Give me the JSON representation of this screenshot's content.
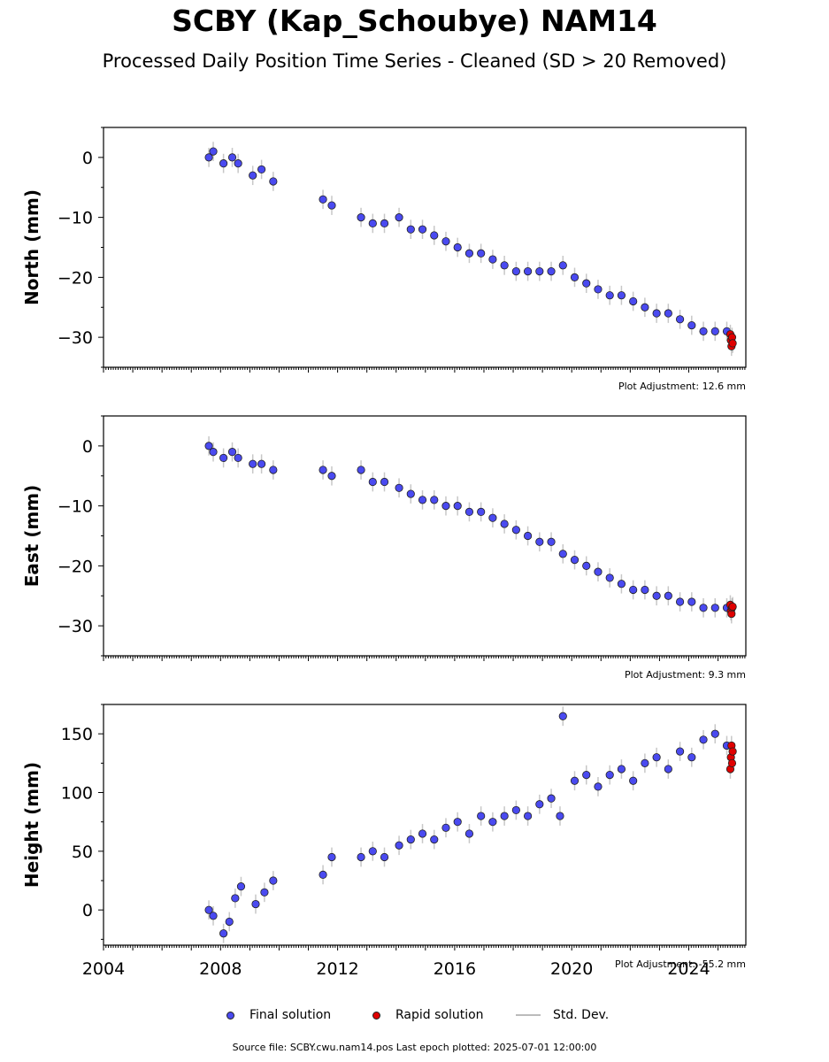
{
  "title": "SCBY (Kap_Schoubye) NAM14",
  "subtitle": "Processed Daily Position Time Series - Cleaned (SD > 20 Removed)",
  "legend": {
    "final": "Final solution",
    "rapid": "Rapid solution",
    "std": "Std. Dev."
  },
  "source_note": "Source file: SCBY.cwu.nam14.pos  Last epoch plotted: 2025-07-01 12:00:00",
  "colors": {
    "final": "#4a4af0",
    "rapid": "#e00000",
    "std": "#999999",
    "marker_edge": "#222222"
  },
  "chart_data": [
    {
      "type": "scatter",
      "ylabel": "North (mm)",
      "xlim": [
        2004.0,
        2025.95
      ],
      "ylim": [
        -35,
        5
      ],
      "yticks": [
        0,
        -10,
        -20,
        -30
      ],
      "ytick_labels": [
        "0",
        "−10",
        "−20",
        "−30"
      ],
      "adjustment": "Plot Adjustment: 12.6 mm",
      "series": [
        {
          "name": "Final solution",
          "x": [
            2007.6,
            2007.75,
            2008.1,
            2008.4,
            2008.6,
            2009.1,
            2009.4,
            2009.8,
            2011.5,
            2011.8,
            2012.8,
            2013.2,
            2013.6,
            2014.1,
            2014.5,
            2014.9,
            2015.3,
            2015.7,
            2016.1,
            2016.5,
            2016.9,
            2017.3,
            2017.7,
            2018.1,
            2018.5,
            2018.9,
            2019.3,
            2019.7,
            2020.1,
            2020.5,
            2020.9,
            2021.3,
            2021.7,
            2022.1,
            2022.5,
            2022.9,
            2023.3,
            2023.7,
            2024.1,
            2024.5,
            2024.9,
            2025.3
          ],
          "y": [
            0,
            1,
            -1,
            0,
            -1,
            -3,
            -2,
            -4,
            -7,
            -8,
            -10,
            -11,
            -11,
            -10,
            -12,
            -12,
            -13,
            -14,
            -15,
            -16,
            -16,
            -17,
            -18,
            -19,
            -19,
            -19,
            -19,
            -18,
            -20,
            -21,
            -22,
            -23,
            -23,
            -24,
            -25,
            -26,
            -26,
            -27,
            -28,
            -29,
            -29,
            -29
          ]
        },
        {
          "name": "Rapid solution",
          "x": [
            2025.42,
            2025.44,
            2025.46,
            2025.48,
            2025.5
          ],
          "y": [
            -29.5,
            -30.5,
            -31.5,
            -30.0,
            -31.0
          ]
        }
      ]
    },
    {
      "type": "scatter",
      "ylabel": "East (mm)",
      "xlim": [
        2004.0,
        2025.95
      ],
      "ylim": [
        -35,
        5
      ],
      "yticks": [
        0,
        -10,
        -20,
        -30
      ],
      "ytick_labels": [
        "0",
        "−10",
        "−20",
        "−30"
      ],
      "adjustment": "Plot Adjustment: 9.3 mm",
      "series": [
        {
          "name": "Final solution",
          "x": [
            2007.6,
            2007.75,
            2008.1,
            2008.4,
            2008.6,
            2009.1,
            2009.4,
            2009.8,
            2011.5,
            2011.8,
            2012.8,
            2013.2,
            2013.6,
            2014.1,
            2014.5,
            2014.9,
            2015.3,
            2015.7,
            2016.1,
            2016.5,
            2016.9,
            2017.3,
            2017.7,
            2018.1,
            2018.5,
            2018.9,
            2019.3,
            2019.7,
            2020.1,
            2020.5,
            2020.9,
            2021.3,
            2021.7,
            2022.1,
            2022.5,
            2022.9,
            2023.3,
            2023.7,
            2024.1,
            2024.5,
            2024.9,
            2025.3
          ],
          "y": [
            0,
            -1,
            -2,
            -1,
            -2,
            -3,
            -3,
            -4,
            -4,
            -5,
            -4,
            -6,
            -6,
            -7,
            -8,
            -9,
            -9,
            -10,
            -10,
            -11,
            -11,
            -12,
            -13,
            -14,
            -15,
            -16,
            -16,
            -18,
            -19,
            -20,
            -21,
            -22,
            -23,
            -24,
            -24,
            -25,
            -25,
            -26,
            -26,
            -27,
            -27,
            -27
          ]
        },
        {
          "name": "Rapid solution",
          "x": [
            2025.42,
            2025.44,
            2025.46,
            2025.48,
            2025.5
          ],
          "y": [
            -26.5,
            -27.5,
            -28.0,
            -27.0,
            -26.8
          ]
        }
      ]
    },
    {
      "type": "scatter",
      "ylabel": "Height (mm)",
      "xlim": [
        2004.0,
        2025.95
      ],
      "ylim": [
        -30,
        175
      ],
      "yticks": [
        150,
        100,
        50,
        0
      ],
      "ytick_labels": [
        "150",
        "100",
        "50",
        "0"
      ],
      "xticks": [
        2004,
        2008,
        2012,
        2016,
        2020,
        2024
      ],
      "xtick_labels": [
        "2004",
        "2008",
        "2012",
        "2016",
        "2020",
        "2024"
      ],
      "adjustment": "Plot Adjustment: -55.2 mm",
      "series": [
        {
          "name": "Final solution",
          "x": [
            2007.6,
            2007.75,
            2008.1,
            2008.3,
            2008.5,
            2008.7,
            2009.2,
            2009.5,
            2009.8,
            2011.5,
            2011.8,
            2012.8,
            2013.2,
            2013.6,
            2014.1,
            2014.5,
            2014.9,
            2015.3,
            2015.7,
            2016.1,
            2016.5,
            2016.9,
            2017.3,
            2017.7,
            2018.1,
            2018.5,
            2018.9,
            2019.3,
            2019.6,
            2019.7,
            2020.1,
            2020.5,
            2020.9,
            2021.3,
            2021.7,
            2022.1,
            2022.5,
            2022.9,
            2023.3,
            2023.7,
            2024.1,
            2024.5,
            2024.9,
            2025.3
          ],
          "y": [
            0,
            -5,
            -20,
            -10,
            10,
            20,
            5,
            15,
            25,
            30,
            45,
            45,
            50,
            45,
            55,
            60,
            65,
            60,
            70,
            75,
            65,
            80,
            75,
            80,
            85,
            80,
            90,
            95,
            80,
            165,
            110,
            115,
            105,
            115,
            120,
            110,
            125,
            130,
            120,
            135,
            130,
            145,
            150,
            140
          ]
        },
        {
          "name": "Rapid solution",
          "x": [
            2025.42,
            2025.44,
            2025.46,
            2025.48,
            2025.5
          ],
          "y": [
            120,
            130,
            140,
            125,
            135
          ]
        }
      ]
    }
  ]
}
